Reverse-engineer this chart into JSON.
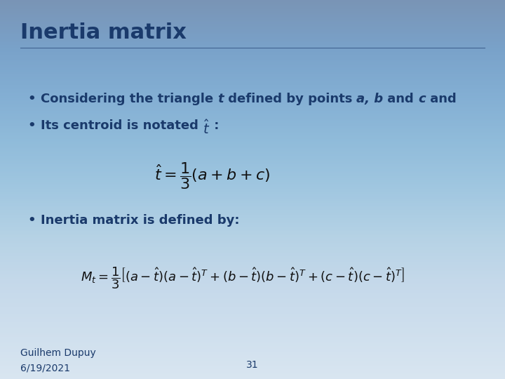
{
  "title": "Inertia matrix",
  "title_color": "#1a3a6b",
  "title_fontsize": 22,
  "bg_color": "#c5d8e8",
  "bullet1a": "Considering the triangle ",
  "bullet1b": "t",
  "bullet1c": " defined by points ",
  "bullet1d": "a, b",
  "bullet1e": " and ",
  "bullet1f": "c",
  "bullet1g": " and",
  "bullet2a": "Its centroid is notated ",
  "bullet2c": " :",
  "bullet3": "Inertia matrix is defined by:",
  "footer_left1": "Guilhem Dupuy",
  "footer_left2": "6/19/2021",
  "footer_center": "31",
  "text_color": "#1a3a6b",
  "bullet_fontsize": 13,
  "formula_fontsize": 15,
  "footer_fontsize": 10
}
